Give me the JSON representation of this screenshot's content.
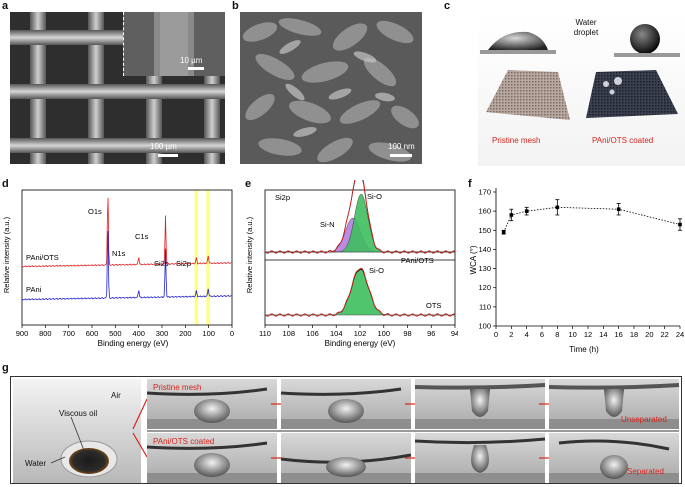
{
  "panels": {
    "a": {
      "label": "a",
      "inset_scale": "10 µm",
      "main_scale": "100 µm"
    },
    "b": {
      "label": "b",
      "scale": "100 nm"
    },
    "c": {
      "label": "c",
      "droplet_label": "Water droplet",
      "left_caption": "Pristine mesh",
      "right_caption": "PAni/OTS coated"
    },
    "d": {
      "label": "d",
      "chart_data": {
        "type": "line",
        "xlabel": "Binding energy (eV)",
        "ylabel": "Relative intensity (a.u.)",
        "xlim": [
          900,
          0
        ],
        "x_ticks": [
          900,
          800,
          700,
          600,
          500,
          400,
          300,
          200,
          100,
          0
        ],
        "series": [
          {
            "name": "PAni/OTS",
            "color": "#e02020"
          },
          {
            "name": "PAni",
            "color": "#2222cc"
          }
        ],
        "peaks": [
          "O1s",
          "N1s",
          "C1s",
          "Si2s",
          "Si2p"
        ],
        "highlight_color": "#ffff66"
      }
    },
    "e": {
      "label": "e",
      "chart_data": {
        "type": "line",
        "title": "Si2p",
        "xlabel": "Binding energy (eV)",
        "ylabel": "Relative intensity (a.u.)",
        "xlim": [
          110,
          94
        ],
        "x_ticks": [
          110,
          108,
          106,
          104,
          102,
          100,
          98,
          96,
          94
        ],
        "series": [
          {
            "name": "PAni/OTS"
          },
          {
            "name": "OTS"
          }
        ],
        "components": [
          {
            "name": "Si-N",
            "center": 102.6,
            "color": "#b77ee0"
          },
          {
            "name": "Si-O",
            "center": 101.9,
            "color": "#3fbf5f"
          }
        ],
        "ots_component": {
          "name": "Si-O",
          "center": 102.0
        }
      }
    },
    "f": {
      "label": "f",
      "chart_data": {
        "type": "scatter",
        "xlabel": "Time (h)",
        "ylabel": "WCA (°)",
        "xlim": [
          0,
          24
        ],
        "ylim": [
          100,
          170
        ],
        "x_ticks": [
          0,
          2,
          4,
          6,
          8,
          10,
          12,
          14,
          16,
          18,
          20,
          22,
          24
        ],
        "y_ticks": [
          100,
          110,
          120,
          130,
          140,
          150,
          160,
          170
        ],
        "x": [
          1,
          2,
          4,
          8,
          16,
          24
        ],
        "y": [
          149,
          158,
          160,
          162,
          161,
          153
        ],
        "error": [
          1,
          3,
          2,
          4,
          3,
          3
        ]
      }
    },
    "g": {
      "label": "g",
      "air": "Air",
      "viscous_oil": "Viscous oil",
      "water": "Water",
      "row1_label": "Pristine mesh",
      "row1_result": "Unseparated",
      "row2_label": "PAni/OTS coated",
      "row2_result": "Separated"
    }
  }
}
